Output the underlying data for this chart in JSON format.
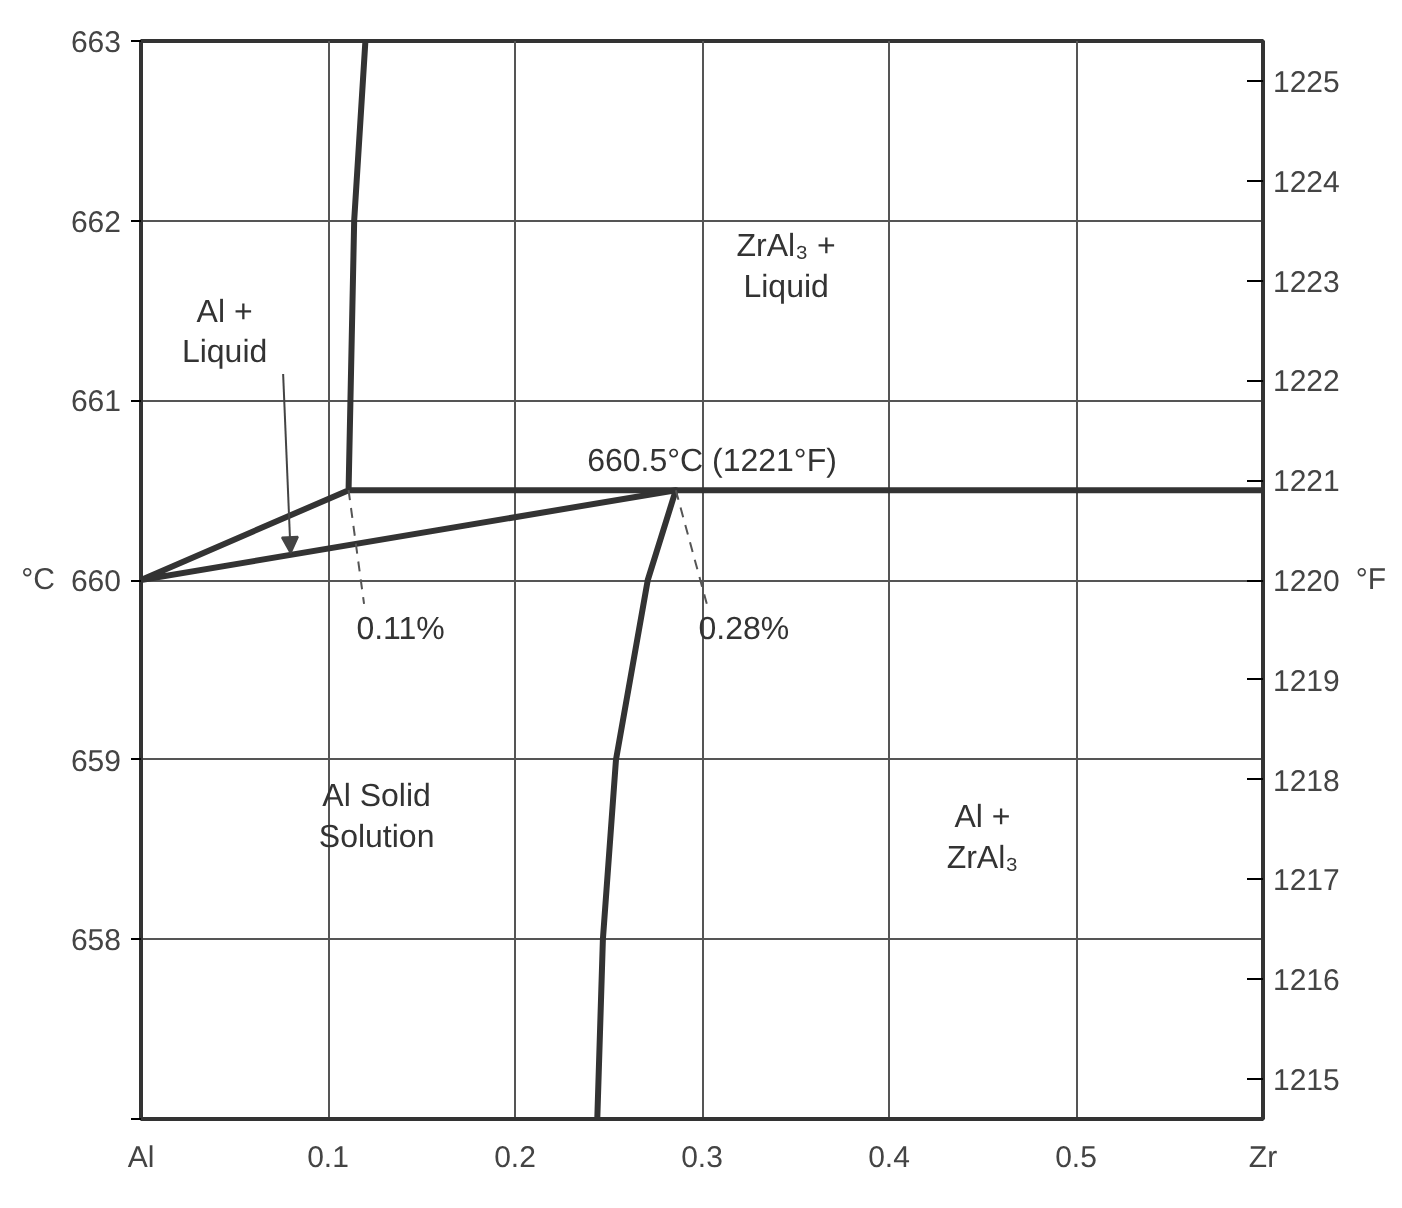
{
  "chart_data": {
    "type": "line",
    "ylabel": "°C",
    "y2label": "°F",
    "xlim": [
      0,
      0.6
    ],
    "xticks": [
      {
        "value": 0,
        "label": "Al"
      },
      0.1,
      0.2,
      0.3,
      0.4,
      0.5,
      {
        "value": 0.6,
        "label": "Zr"
      }
    ],
    "ylim": [
      657,
      663
    ],
    "yticks": [
      {
        "value": 657,
        "label": null
      },
      658,
      659,
      660,
      661,
      662,
      663
    ],
    "y2lim": [
      1214.6,
      1225.4
    ],
    "y2ticks": [
      1215,
      1216,
      1217,
      1218,
      1219,
      1220,
      1221,
      1222,
      1223,
      1224,
      1225
    ],
    "grid": true,
    "marker": "none",
    "line_style": "solid",
    "series": [
      {
        "color": "#333333",
        "x": [
          0.12,
          0.114,
          0.111,
          0,
          0.286,
          0.6
        ],
        "values": [
          663,
          662,
          660.5,
          660,
          660.5,
          660.5
        ]
      },
      {
        "color": "#333333",
        "x": [
          0.111,
          0.286,
          0.271,
          0.254,
          0.247,
          0.244
        ],
        "values": [
          660.5,
          660.5,
          660,
          659,
          658,
          657
        ]
      }
    ],
    "annotations": [
      {
        "text": "Al +\nLiquid",
        "x": 0.08,
        "y": 660.15
      },
      {
        "text": "0.11%",
        "x": 0.111,
        "y": 660.5
      },
      {
        "text": "0.28%",
        "x": 0.286,
        "y": 660.5
      },
      {
        "text": "660.5°C (1221°F)",
        "x": 0.3,
        "y": 660.5
      },
      "ZrAl₃ +\nLiquid",
      "Al Solid\nSolution",
      "Al +\nZrAl₃"
    ]
  }
}
